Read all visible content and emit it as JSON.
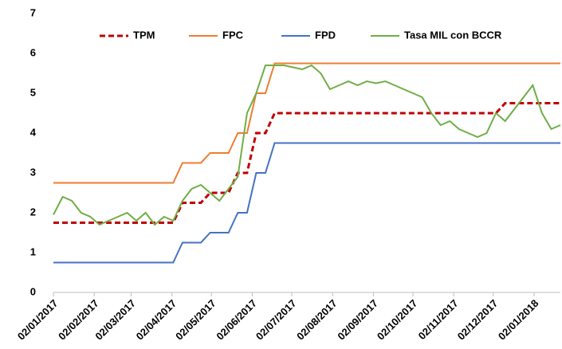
{
  "chart_data": {
    "type": "line",
    "x": [
      "2017-01-02",
      "2017-01-09",
      "2017-01-16",
      "2017-01-23",
      "2017-01-30",
      "2017-02-06",
      "2017-02-13",
      "2017-02-20",
      "2017-02-27",
      "2017-03-06",
      "2017-03-13",
      "2017-03-20",
      "2017-03-27",
      "2017-04-03",
      "2017-04-10",
      "2017-04-17",
      "2017-04-24",
      "2017-05-01",
      "2017-05-08",
      "2017-05-15",
      "2017-05-22",
      "2017-05-29",
      "2017-06-05",
      "2017-06-12",
      "2017-06-19",
      "2017-06-26",
      "2017-07-03",
      "2017-07-10",
      "2017-07-17",
      "2017-07-24",
      "2017-07-31",
      "2017-08-07",
      "2017-08-14",
      "2017-08-21",
      "2017-08-28",
      "2017-09-04",
      "2017-09-11",
      "2017-09-18",
      "2017-09-25",
      "2017-10-02",
      "2017-10-09",
      "2017-10-16",
      "2017-10-23",
      "2017-10-30",
      "2017-11-06",
      "2017-11-13",
      "2017-11-20",
      "2017-11-27",
      "2017-12-04",
      "2017-12-11",
      "2017-12-18",
      "2017-12-25",
      "2018-01-01",
      "2018-01-08",
      "2018-01-15",
      "2018-01-22"
    ],
    "series": [
      {
        "name": "TPM",
        "color": "#c00000",
        "dashed": true,
        "values": [
          1.75,
          1.75,
          1.75,
          1.75,
          1.75,
          1.75,
          1.75,
          1.75,
          1.75,
          1.75,
          1.75,
          1.75,
          1.75,
          1.75,
          2.25,
          2.25,
          2.25,
          2.5,
          2.5,
          2.5,
          3,
          3,
          4,
          4,
          4.5,
          4.5,
          4.5,
          4.5,
          4.5,
          4.5,
          4.5,
          4.5,
          4.5,
          4.5,
          4.5,
          4.5,
          4.5,
          4.5,
          4.5,
          4.5,
          4.5,
          4.5,
          4.5,
          4.5,
          4.5,
          4.5,
          4.5,
          4.5,
          4.5,
          4.75,
          4.75,
          4.75,
          4.75,
          4.75,
          4.75,
          4.75
        ]
      },
      {
        "name": "FPC",
        "color": "#ed7d31",
        "values": [
          2.75,
          2.75,
          2.75,
          2.75,
          2.75,
          2.75,
          2.75,
          2.75,
          2.75,
          2.75,
          2.75,
          2.75,
          2.75,
          2.75,
          3.25,
          3.25,
          3.25,
          3.5,
          3.5,
          3.5,
          4,
          4,
          5,
          5,
          5.75,
          5.75,
          5.75,
          5.75,
          5.75,
          5.75,
          5.75,
          5.75,
          5.75,
          5.75,
          5.75,
          5.75,
          5.75,
          5.75,
          5.75,
          5.75,
          5.75,
          5.75,
          5.75,
          5.75,
          5.75,
          5.75,
          5.75,
          5.75,
          5.75,
          5.75,
          5.75,
          5.75,
          5.75,
          5.75,
          5.75,
          5.75
        ]
      },
      {
        "name": "FPD",
        "color": "#4472c4",
        "values": [
          0.75,
          0.75,
          0.75,
          0.75,
          0.75,
          0.75,
          0.75,
          0.75,
          0.75,
          0.75,
          0.75,
          0.75,
          0.75,
          0.75,
          1.25,
          1.25,
          1.25,
          1.5,
          1.5,
          1.5,
          2,
          2,
          3,
          3,
          3.75,
          3.75,
          3.75,
          3.75,
          3.75,
          3.75,
          3.75,
          3.75,
          3.75,
          3.75,
          3.75,
          3.75,
          3.75,
          3.75,
          3.75,
          3.75,
          3.75,
          3.75,
          3.75,
          3.75,
          3.75,
          3.75,
          3.75,
          3.75,
          3.75,
          3.75,
          3.75,
          3.75,
          3.75,
          3.75,
          3.75,
          3.75
        ]
      },
      {
        "name": "Tasa MIL con BCCR",
        "color": "#70ad47",
        "values": [
          1.95,
          2.4,
          2.3,
          2.0,
          1.9,
          1.7,
          1.8,
          1.9,
          2.0,
          1.8,
          2.0,
          1.7,
          1.9,
          1.8,
          2.3,
          2.6,
          2.7,
          2.5,
          2.3,
          2.6,
          2.9,
          4.5,
          5.0,
          5.7,
          5.7,
          5.7,
          5.65,
          5.6,
          5.7,
          5.5,
          5.1,
          5.2,
          5.3,
          5.2,
          5.3,
          5.25,
          5.3,
          5.2,
          5.1,
          5.0,
          4.9,
          4.5,
          4.2,
          4.3,
          4.1,
          4.0,
          3.9,
          4.0,
          4.5,
          4.3,
          4.6,
          4.9,
          5.2,
          4.5,
          4.1,
          4.2
        ]
      }
    ],
    "xlim": [
      "2017-01-02",
      "2018-01-22"
    ],
    "xticks": [
      {
        "value": "2017-01-02",
        "label": "02/01/2017"
      },
      {
        "value": "2017-02-02",
        "label": "02/02/2017"
      },
      {
        "value": "2017-03-02",
        "label": "02/03/2017"
      },
      {
        "value": "2017-04-02",
        "label": "02/04/2017"
      },
      {
        "value": "2017-05-02",
        "label": "02/05/2017"
      },
      {
        "value": "2017-06-02",
        "label": "02/06/2017"
      },
      {
        "value": "2017-07-02",
        "label": "02/07/2017"
      },
      {
        "value": "2017-08-02",
        "label": "02/08/2017"
      },
      {
        "value": "2017-09-02",
        "label": "02/09/2017"
      },
      {
        "value": "2017-10-02",
        "label": "02/10/2017"
      },
      {
        "value": "2017-11-02",
        "label": "02/11/2017"
      },
      {
        "value": "2017-12-02",
        "label": "02/12/2017"
      },
      {
        "value": "2018-01-02",
        "label": "02/01/2018"
      }
    ],
    "ylim": [
      0,
      7
    ],
    "yticks": [
      0,
      1,
      2,
      3,
      4,
      5,
      6,
      7
    ],
    "grid": false,
    "legend": "top"
  }
}
